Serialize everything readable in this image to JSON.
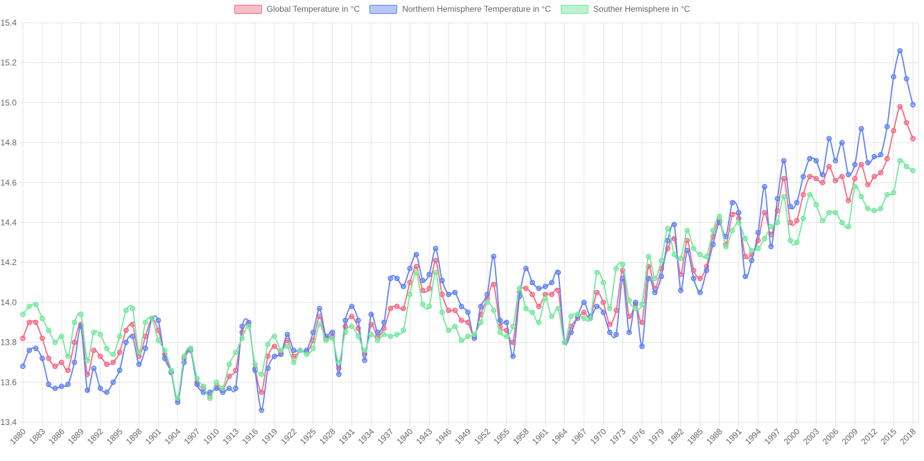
{
  "chart_data": {
    "type": "line",
    "title": "",
    "xlabel": "",
    "ylabel": "",
    "ylim": [
      13.4,
      15.4
    ],
    "y_ticks": [
      13.4,
      13.6,
      13.8,
      14.0,
      14.2,
      14.4,
      14.6,
      14.8,
      15.0,
      15.2,
      15.4
    ],
    "x_tick_step": 3,
    "grid": true,
    "legend_position": "top",
    "years": [
      1880,
      1881,
      1882,
      1883,
      1884,
      1885,
      1886,
      1887,
      1888,
      1889,
      1890,
      1891,
      1892,
      1893,
      1894,
      1895,
      1896,
      1897,
      1898,
      1899,
      1900,
      1901,
      1902,
      1903,
      1904,
      1905,
      1906,
      1907,
      1908,
      1909,
      1910,
      1911,
      1912,
      1913,
      1914,
      1915,
      1916,
      1917,
      1918,
      1919,
      1920,
      1921,
      1922,
      1923,
      1924,
      1925,
      1926,
      1927,
      1928,
      1929,
      1930,
      1931,
      1932,
      1933,
      1934,
      1935,
      1936,
      1937,
      1938,
      1939,
      1940,
      1941,
      1942,
      1943,
      1944,
      1945,
      1946,
      1947,
      1948,
      1949,
      1950,
      1951,
      1952,
      1953,
      1954,
      1955,
      1956,
      1957,
      1958,
      1959,
      1960,
      1961,
      1962,
      1963,
      1964,
      1965,
      1966,
      1967,
      1968,
      1969,
      1970,
      1971,
      1972,
      1973,
      1974,
      1975,
      1976,
      1977,
      1978,
      1979,
      1980,
      1981,
      1982,
      1983,
      1984,
      1985,
      1986,
      1987,
      1988,
      1989,
      1990,
      1991,
      1992,
      1993,
      1994,
      1995,
      1996,
      1997,
      1998,
      1999,
      2000,
      2001,
      2002,
      2003,
      2004,
      2005,
      2006,
      2007,
      2008,
      2009,
      2010,
      2011,
      2012,
      2013,
      2014,
      2015,
      2016,
      2017,
      2018
    ],
    "series": [
      {
        "name": "Global Temperature in °C",
        "color": "#f56b84",
        "fill": "rgba(245,107,132,0.45)",
        "values": [
          13.82,
          13.9,
          13.9,
          13.82,
          13.72,
          13.68,
          13.7,
          13.66,
          13.8,
          13.89,
          13.64,
          13.76,
          13.73,
          13.69,
          13.7,
          13.75,
          13.86,
          13.89,
          13.73,
          13.83,
          13.92,
          13.86,
          13.74,
          13.65,
          13.51,
          13.72,
          13.77,
          13.6,
          13.57,
          13.53,
          13.58,
          13.56,
          13.63,
          13.66,
          13.85,
          13.89,
          13.67,
          13.55,
          13.73,
          13.78,
          13.75,
          13.81,
          13.73,
          13.76,
          13.75,
          13.81,
          13.93,
          13.82,
          13.83,
          13.67,
          13.88,
          13.93,
          13.87,
          13.74,
          13.89,
          13.83,
          13.87,
          13.97,
          13.98,
          13.97,
          14.1,
          14.18,
          14.06,
          14.07,
          14.21,
          14.04,
          13.96,
          13.96,
          13.91,
          13.9,
          13.83,
          13.94,
          14.02,
          14.09,
          13.88,
          13.86,
          13.8,
          14.05,
          14.07,
          14.04,
          13.98,
          14.04,
          14.04,
          14.06,
          13.8,
          13.88,
          13.92,
          13.95,
          13.92,
          14.05,
          14.0,
          13.89,
          13.96,
          14.16,
          13.93,
          13.99,
          13.9,
          14.18,
          14.07,
          14.17,
          14.27,
          14.32,
          14.14,
          14.31,
          14.16,
          14.12,
          14.18,
          14.33,
          14.41,
          14.29,
          14.44,
          14.42,
          14.23,
          14.24,
          14.31,
          14.45,
          14.34,
          14.46,
          14.62,
          14.4,
          14.41,
          14.54,
          14.63,
          14.62,
          14.6,
          14.68,
          14.61,
          14.63,
          14.51,
          14.62,
          14.69,
          14.59,
          14.63,
          14.65,
          14.72,
          14.86,
          14.98,
          14.9,
          14.82
        ]
      },
      {
        "name": "Northern Hemisphere Temperature in °C",
        "color": "#6183f4",
        "fill": "rgba(97,131,244,0.45)",
        "values": [
          13.68,
          13.76,
          13.77,
          13.72,
          13.59,
          13.57,
          13.58,
          13.59,
          13.7,
          13.88,
          13.56,
          13.67,
          13.57,
          13.55,
          13.6,
          13.66,
          13.8,
          13.83,
          13.69,
          13.77,
          13.92,
          13.91,
          13.72,
          13.65,
          13.5,
          13.7,
          13.76,
          13.59,
          13.55,
          13.55,
          13.57,
          13.55,
          13.57,
          13.57,
          13.88,
          13.9,
          13.66,
          13.46,
          13.67,
          13.73,
          13.74,
          13.84,
          13.76,
          13.76,
          13.76,
          13.85,
          13.97,
          13.83,
          13.85,
          13.64,
          13.91,
          13.98,
          13.91,
          13.71,
          13.94,
          13.85,
          13.9,
          14.12,
          14.12,
          14.08,
          14.17,
          14.24,
          14.11,
          14.14,
          14.27,
          14.11,
          14.04,
          14.05,
          13.98,
          13.95,
          13.82,
          13.98,
          14.04,
          14.23,
          13.91,
          13.9,
          13.73,
          14.03,
          14.17,
          14.1,
          14.07,
          14.08,
          14.1,
          14.15,
          13.8,
          13.85,
          13.93,
          14.0,
          13.93,
          13.98,
          13.95,
          13.85,
          13.84,
          14.12,
          13.85,
          14.0,
          13.78,
          14.12,
          14.05,
          14.13,
          14.31,
          14.39,
          14.06,
          14.26,
          14.12,
          14.05,
          14.16,
          14.29,
          14.4,
          14.33,
          14.5,
          14.45,
          14.13,
          14.21,
          14.35,
          14.58,
          14.28,
          14.52,
          14.71,
          14.48,
          14.5,
          14.63,
          14.72,
          14.71,
          14.64,
          14.82,
          14.71,
          14.8,
          14.64,
          14.69,
          14.87,
          14.7,
          14.73,
          14.74,
          14.88,
          15.13,
          15.26,
          15.12,
          14.99
        ]
      },
      {
        "name": "Souther Hemisphere in °C",
        "color": "#75e89e",
        "fill": "rgba(117,232,158,0.5)",
        "values": [
          13.94,
          13.98,
          13.99,
          13.92,
          13.86,
          13.8,
          13.83,
          13.73,
          13.9,
          13.94,
          13.71,
          13.85,
          13.84,
          13.77,
          13.74,
          13.83,
          13.96,
          13.97,
          13.75,
          13.9,
          13.92,
          13.81,
          13.76,
          13.66,
          13.52,
          13.73,
          13.77,
          13.62,
          13.58,
          13.52,
          13.6,
          13.57,
          13.69,
          13.75,
          13.82,
          13.88,
          13.69,
          13.64,
          13.79,
          13.83,
          13.76,
          13.78,
          13.7,
          13.76,
          13.74,
          13.77,
          13.89,
          13.81,
          13.82,
          13.7,
          13.85,
          13.88,
          13.83,
          13.76,
          13.84,
          13.81,
          13.84,
          13.83,
          13.84,
          13.86,
          14.04,
          14.15,
          13.99,
          13.98,
          14.15,
          13.95,
          13.86,
          13.88,
          13.81,
          13.83,
          13.84,
          13.9,
          14.0,
          13.96,
          13.85,
          13.83,
          13.88,
          14.07,
          13.97,
          13.95,
          13.9,
          14.02,
          13.93,
          13.97,
          13.8,
          13.93,
          13.94,
          13.92,
          13.92,
          14.15,
          14.1,
          13.97,
          14.17,
          14.19,
          14.01,
          13.97,
          13.99,
          14.23,
          14.12,
          14.21,
          14.37,
          14.24,
          14.22,
          14.36,
          14.27,
          14.24,
          14.23,
          14.36,
          14.43,
          14.28,
          14.36,
          14.4,
          14.32,
          14.26,
          14.27,
          14.32,
          14.38,
          14.4,
          14.53,
          14.31,
          14.3,
          14.42,
          14.54,
          14.49,
          14.41,
          14.45,
          14.45,
          14.4,
          14.38,
          14.58,
          14.53,
          14.47,
          14.46,
          14.47,
          14.54,
          14.55,
          14.71,
          14.68,
          14.66
        ]
      }
    ],
    "style": {
      "grid_color": "#e5e5e5",
      "axis_border_color": "#d0d0d0",
      "tick_label_color": "#666666",
      "legend_label_color": "#666666",
      "background": "#ffffff"
    }
  }
}
